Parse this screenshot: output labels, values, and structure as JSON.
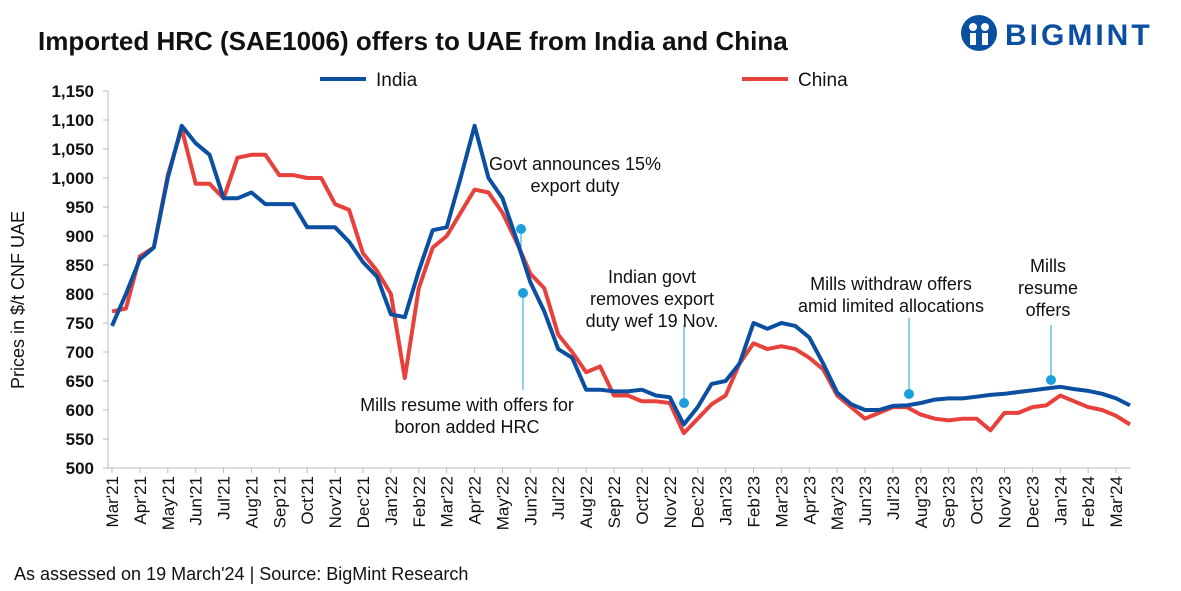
{
  "brand": "BIGMINT",
  "chart_data": {
    "type": "line",
    "title": "Imported HRC (SAE1006) offers to UAE from India and China",
    "y_label": "Prices in $/t CNF UAE",
    "source": "As assessed on 19 March'24 | Source: BigMint Research",
    "categories": [
      "Mar'21",
      null,
      "Apr'21",
      null,
      "May'21",
      null,
      "Jun'21",
      null,
      "Jul'21",
      null,
      "Aug'21",
      null,
      "Sep'21",
      null,
      "Oct'21",
      null,
      "Nov'21",
      null,
      "Dec'21",
      null,
      "Jan'22",
      null,
      "Feb'22",
      null,
      "Mar'22",
      null,
      "Apr'22",
      null,
      "May'22",
      null,
      "Jun'22",
      null,
      "Jul'22",
      null,
      "Aug'22",
      null,
      "Sep'22",
      null,
      "Oct'22",
      null,
      "Nov'22",
      null,
      "Dec'22",
      null,
      "Jan'23",
      null,
      "Feb'23",
      null,
      "Mar'23",
      null,
      "Apr'23",
      null,
      "May'23",
      null,
      "Jun'23",
      null,
      "Jul'23",
      null,
      "Aug'23",
      null,
      "Sep'23",
      null,
      "Oct'23",
      null,
      "Nov'23",
      null,
      "Dec'23",
      null,
      "Jan'24",
      null,
      "Feb'24",
      null,
      "Mar'24",
      null
    ],
    "series": [
      {
        "name": "India",
        "color": "#0b4fa0",
        "values": [
          745,
          800,
          860,
          880,
          1000,
          1090,
          1060,
          1040,
          965,
          965,
          975,
          955,
          955,
          955,
          915,
          915,
          915,
          890,
          855,
          830,
          765,
          760,
          840,
          910,
          915,
          1000,
          1090,
          1000,
          965,
          895,
          820,
          770,
          705,
          690,
          635,
          635,
          632,
          632,
          635,
          625,
          622,
          575,
          605,
          645,
          650,
          680,
          750,
          740,
          750,
          745,
          725,
          680,
          630,
          610,
          600,
          600,
          607,
          608,
          612,
          618,
          620,
          620,
          623,
          626,
          628,
          631,
          634,
          637,
          640,
          636,
          633,
          628,
          620,
          608
        ]
      },
      {
        "name": "China",
        "color": "#e8403a",
        "values": [
          770,
          775,
          865,
          880,
          1005,
          1085,
          990,
          990,
          965,
          1035,
          1040,
          1040,
          1005,
          1005,
          1000,
          1000,
          955,
          945,
          870,
          840,
          800,
          655,
          810,
          880,
          900,
          940,
          980,
          975,
          940,
          890,
          835,
          810,
          730,
          700,
          665,
          675,
          625,
          625,
          615,
          615,
          612,
          560,
          585,
          610,
          625,
          680,
          715,
          705,
          710,
          705,
          690,
          670,
          625,
          605,
          585,
          595,
          605,
          605,
          592,
          585,
          582,
          585,
          585,
          565,
          595,
          595,
          605,
          608,
          625,
          615,
          605,
          600,
          590,
          575
        ]
      }
    ],
    "ylim": [
      500,
      1150
    ],
    "yticks": [
      500,
      550,
      600,
      650,
      700,
      750,
      800,
      850,
      900,
      950,
      {
        "value": 1000,
        "label": "1,000"
      },
      {
        "value": 1050,
        "label": "1,050"
      },
      {
        "value": 1100,
        "label": "1,100"
      },
      {
        "value": 1150,
        "label": "1,150"
      }
    ],
    "grid": false,
    "annotations": [
      [
        "Govt announces 15%",
        "export duty"
      ],
      [
        "Mills resume with offers for",
        "boron added HRC"
      ],
      [
        "Indian govt",
        "removes export",
        "duty wef 19 Nov."
      ],
      [
        "Mills withdraw offers",
        "amid limited allocations"
      ],
      [
        "Mills",
        "resume",
        "offers"
      ]
    ]
  }
}
